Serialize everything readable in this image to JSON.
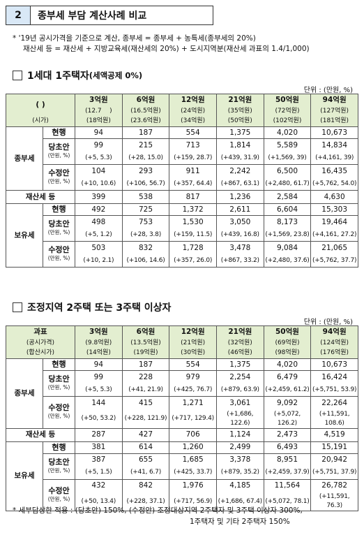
{
  "header": {
    "number": "2",
    "title": "종부세 부담 계산사례 비교"
  },
  "note": {
    "line1": "* '19년 공시가격을 기준으로 계산, 종부세 = 종부세 + 농특세(종부세의 20%)",
    "line2": "재산세 등 = 재산세 + 지방교육세(재산세의 20%) + 도시지역분(재산세 과표의 1.4/1,000)"
  },
  "section1": {
    "title": "1세대 1주택자",
    "subtitle": "(세액공제 0%)",
    "unit": "단위 : (만원, %)",
    "head_label1": "(          )",
    "head_label2": "(시가)",
    "columns": [
      {
        "price": "3억원",
        "sub1": "(12.7",
        "sub1b": ")",
        "sub2": "(18억원)"
      },
      {
        "price": "6억원",
        "sub1": "(16.5억원)",
        "sub1b": "",
        "sub2": "(23.6억원)"
      },
      {
        "price": "12억원",
        "sub1": "(24억원)",
        "sub1b": "",
        "sub2": "(34억원)"
      },
      {
        "price": "21억원",
        "sub1": "(35억원)",
        "sub1b": "",
        "sub2": "(50억원)"
      },
      {
        "price": "50억원",
        "sub1": "(72억원)",
        "sub1b": "",
        "sub2": "(102억원)"
      },
      {
        "price": "94억원",
        "sub1": "(127억원)",
        "sub1b": "",
        "sub2": "(181억원)"
      }
    ],
    "jong_label": "종부세",
    "prop_label": "재산세 등",
    "hold_label": "보유세",
    "jong": {
      "current": {
        "label": "현행",
        "values": [
          "94",
          "187",
          "554",
          "1,375",
          "4,020",
          "10,673"
        ]
      },
      "initial": {
        "label": "당초안",
        "unit": "(만원, %)",
        "values": [
          "99",
          "215",
          "713",
          "1,814",
          "5,589",
          "14,834"
        ],
        "changes": [
          "(+5, 5.3)",
          "(+28, 15.0)",
          "(+159, 28.7)",
          "(+439, 31.9)",
          "(+1,569, 39)",
          "(+4,161, 39)"
        ]
      },
      "revised": {
        "label": "수정안",
        "unit": "(만원, %)",
        "values": [
          "104",
          "293",
          "911",
          "2,242",
          "6,500",
          "16,435"
        ],
        "changes": [
          "(+10, 10.6)",
          "(+106, 56.7)",
          "(+357, 64.4)",
          "(+867, 63.1)",
          "(+2,480, 61.7)",
          "(+5,762, 54.0)"
        ]
      }
    },
    "prop_values": [
      "399",
      "538",
      "817",
      "1,236",
      "2,584",
      "4,630"
    ],
    "hold": {
      "current": {
        "label": "현행",
        "values": [
          "492",
          "725",
          "1,372",
          "2,611",
          "6,604",
          "15,303"
        ]
      },
      "initial": {
        "label": "당초안",
        "unit": "(만원, %)",
        "values": [
          "498",
          "753",
          "1,530",
          "3,050",
          "8,173",
          "19,464"
        ],
        "changes": [
          "(+5, 1.2)",
          "(+28, 3.8)",
          "(+159, 11.5)",
          "(+439, 16.8)",
          "(+1,569, 23.8)",
          "(+4,161, 27.2)"
        ]
      },
      "revised": {
        "label": "수정안",
        "unit": "(만원, %)",
        "values": [
          "503",
          "832",
          "1,728",
          "3,478",
          "9,084",
          "21,065"
        ],
        "changes": [
          "(+10, 2.1)",
          "(+106, 14.6)",
          "(+357, 26.0)",
          "(+867, 33.2)",
          "(+2,480, 37.6)",
          "(+5,762, 37.7)"
        ]
      }
    }
  },
  "section2": {
    "title": "조정지역 2주택 또는 3주택 이상자",
    "unit": "단위 : (만원, %)",
    "head_label": "과표",
    "head_label1": "(공시가격)",
    "head_label2": "(합산시가)",
    "columns": [
      {
        "price": "3억원",
        "sub1": "(9.8억원)",
        "sub2": "(14억원)"
      },
      {
        "price": "6억원",
        "sub1": "(13.5억원)",
        "sub2": "(19억원)"
      },
      {
        "price": "12억원",
        "sub1": "(21억원)",
        "sub2": "(30억원)"
      },
      {
        "price": "21억원",
        "sub1": "(32억원)",
        "sub2": "(46억원)"
      },
      {
        "price": "50억원",
        "sub1": "(69억원)",
        "sub2": "(98억원)"
      },
      {
        "price": "94억원",
        "sub1": "(124억원)",
        "sub2": "(176억원)"
      }
    ],
    "jong_label": "종부세",
    "prop_label": "재산세 등",
    "hold_label": "보유세",
    "jong": {
      "current": {
        "label": "현행",
        "values": [
          "94",
          "187",
          "554",
          "1,375",
          "4,020",
          "10,673"
        ]
      },
      "initial": {
        "label": "당초안",
        "unit": "(만원, %)",
        "values": [
          "99",
          "228",
          "979",
          "2,254",
          "6,479",
          "16,424"
        ],
        "changes": [
          "(+5, 5.3)",
          "(+41, 21.9)",
          "(+425, 76.7)",
          "(+879, 63.9)",
          "(+2,459, 61.2)",
          "(+5,751, 53.9)"
        ]
      },
      "revised": {
        "label": "수정안",
        "unit": "(만원, %)",
        "values": [
          "144",
          "415",
          "1,271",
          "3,061",
          "9,092",
          "22,264"
        ],
        "changes": [
          "(+50, 53.2)",
          "(+228, 121.9)",
          "(+717, 129.4)",
          "(+1,686, 122.6)",
          "(+5,072, 126.2)",
          "(+11,591, 108.6)"
        ]
      }
    },
    "prop_values": [
      "287",
      "427",
      "706",
      "1,124",
      "2,473",
      "4,519"
    ],
    "hold": {
      "current": {
        "label": "현행",
        "values": [
          "381",
          "614",
          "1,260",
          "2,499",
          "6,493",
          "15,191"
        ]
      },
      "initial": {
        "label": "당초안",
        "unit": "(만원, %)",
        "values": [
          "387",
          "655",
          "1,685",
          "3,378",
          "8,951",
          "20,942"
        ],
        "changes": [
          "(+5, 1.5)",
          "(+41, 6.7)",
          "(+425, 33.7)",
          "(+879, 35.2)",
          "(+2,459, 37.9)",
          "(+5,751, 37.9)"
        ]
      },
      "revised": {
        "label": "수정안",
        "unit": "(만원, %)",
        "values": [
          "432",
          "842",
          "1,976",
          "4,185",
          "11,564",
          "26,782"
        ],
        "changes": [
          "(+50, 13.4)",
          "(+228, 37.1)",
          "(+717, 56.9)",
          "(+1,686, 67.4)",
          "(+5,072, 78.1)",
          "(+11,591, 76.3)"
        ]
      }
    }
  },
  "footnote": {
    "line1": "* 세부담상한 적용 : (당초안) 150%, (수정안) 조정대상지역 2주택자 및 3주택 이상자 300%,",
    "line2": "1주택자 및 기타 2주택자 150%"
  }
}
